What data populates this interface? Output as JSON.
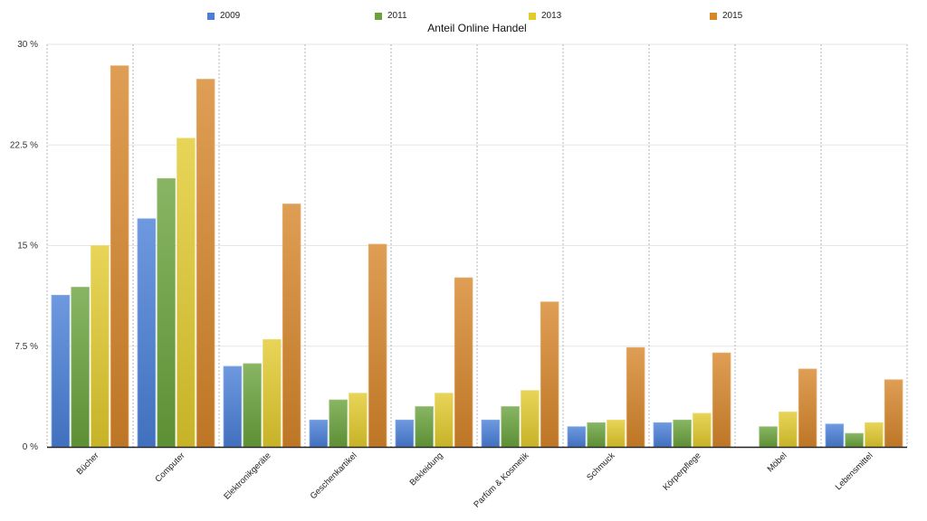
{
  "chart_data": {
    "type": "bar",
    "title": "Anteil Online Handel",
    "xlabel": "",
    "ylabel": "",
    "ylim": [
      0,
      30
    ],
    "yticks": [
      0,
      7.5,
      15,
      22.5,
      30
    ],
    "ytick_labels": [
      "0 %",
      "7.5 %",
      "15 %",
      "22.5 %",
      "30 %"
    ],
    "grid": true,
    "legend_position": "top",
    "categories": [
      "Bücher",
      "Computer",
      "Elektronikgeräte",
      "Geschenkartikel",
      "Bekleidung",
      "Parfüm & Kosmetik",
      "Schmuck",
      "Körperpflege",
      "Möbel",
      "Lebensmittel"
    ],
    "series": [
      {
        "name": "2009",
        "color": "#4a7fd8",
        "values": [
          11.3,
          17.0,
          6.0,
          2.0,
          2.0,
          2.0,
          1.5,
          1.8,
          0,
          1.7
        ]
      },
      {
        "name": "2011",
        "color": "#6aa23c",
        "values": [
          11.9,
          20.0,
          6.2,
          3.5,
          3.0,
          3.0,
          1.8,
          2.0,
          1.5,
          1.0
        ]
      },
      {
        "name": "2013",
        "color": "#e2cb2e",
        "values": [
          15.0,
          23.0,
          8.0,
          4.0,
          4.0,
          4.2,
          2.0,
          2.5,
          2.6,
          1.8
        ]
      },
      {
        "name": "2015",
        "color": "#d7862a",
        "values": [
          28.4,
          27.4,
          18.1,
          15.1,
          12.6,
          10.8,
          7.4,
          7.0,
          5.8,
          5.0
        ]
      }
    ]
  }
}
